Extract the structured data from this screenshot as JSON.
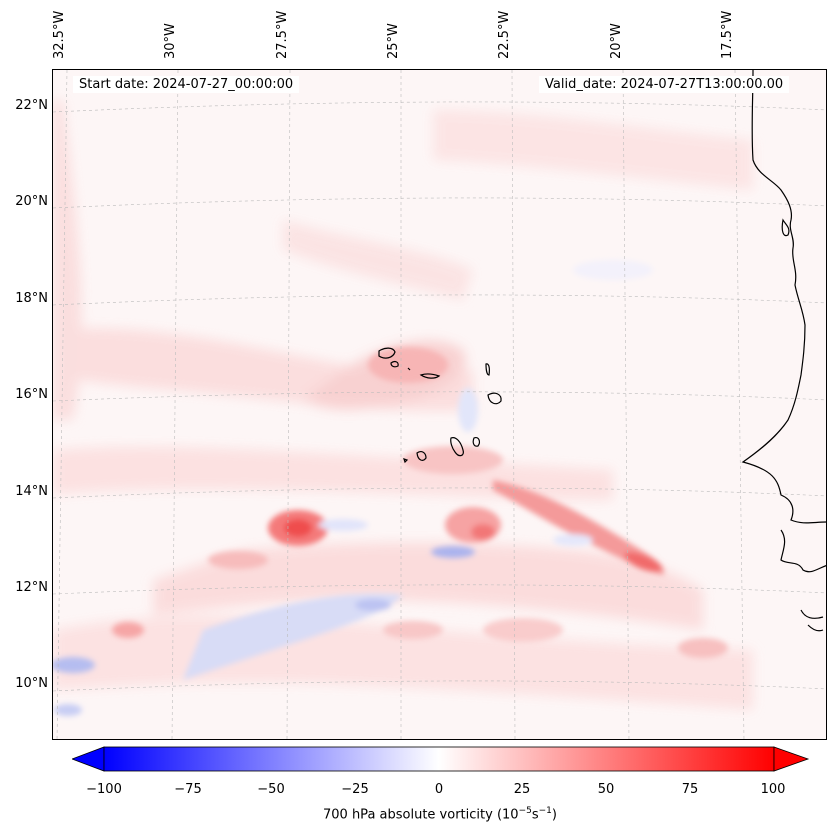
{
  "map": {
    "start_date": "Start date: 2024-07-27_00:00:00",
    "valid_date": "Valid_date: 2024-07-27T13:00:00.00",
    "longitude_labels": [
      "32.5°W",
      "30°W",
      "27.5°W",
      "25°W",
      "22.5°W",
      "20°W",
      "17.5°W"
    ],
    "latitude_labels": [
      "22°N",
      "20°N",
      "18°N",
      "16°N",
      "14°N",
      "12°N",
      "10°N"
    ],
    "variable": "700 hPa absolute vorticity",
    "colors": {
      "negative": "#0000ff",
      "zero": "#ffffff",
      "positive": "#ff0000",
      "coastline": "#000000"
    }
  },
  "colorbar": {
    "ticks": [
      "−100",
      "−75",
      "−50",
      "−25",
      "0",
      "25",
      "50",
      "75",
      "100"
    ],
    "label_text": "700 hPa absolute vorticity (10",
    "label_exp1": "−5",
    "label_mid": "s",
    "label_exp2": "−1",
    "label_close": ")",
    "range": [
      -100,
      100
    ],
    "extend": "both"
  }
}
